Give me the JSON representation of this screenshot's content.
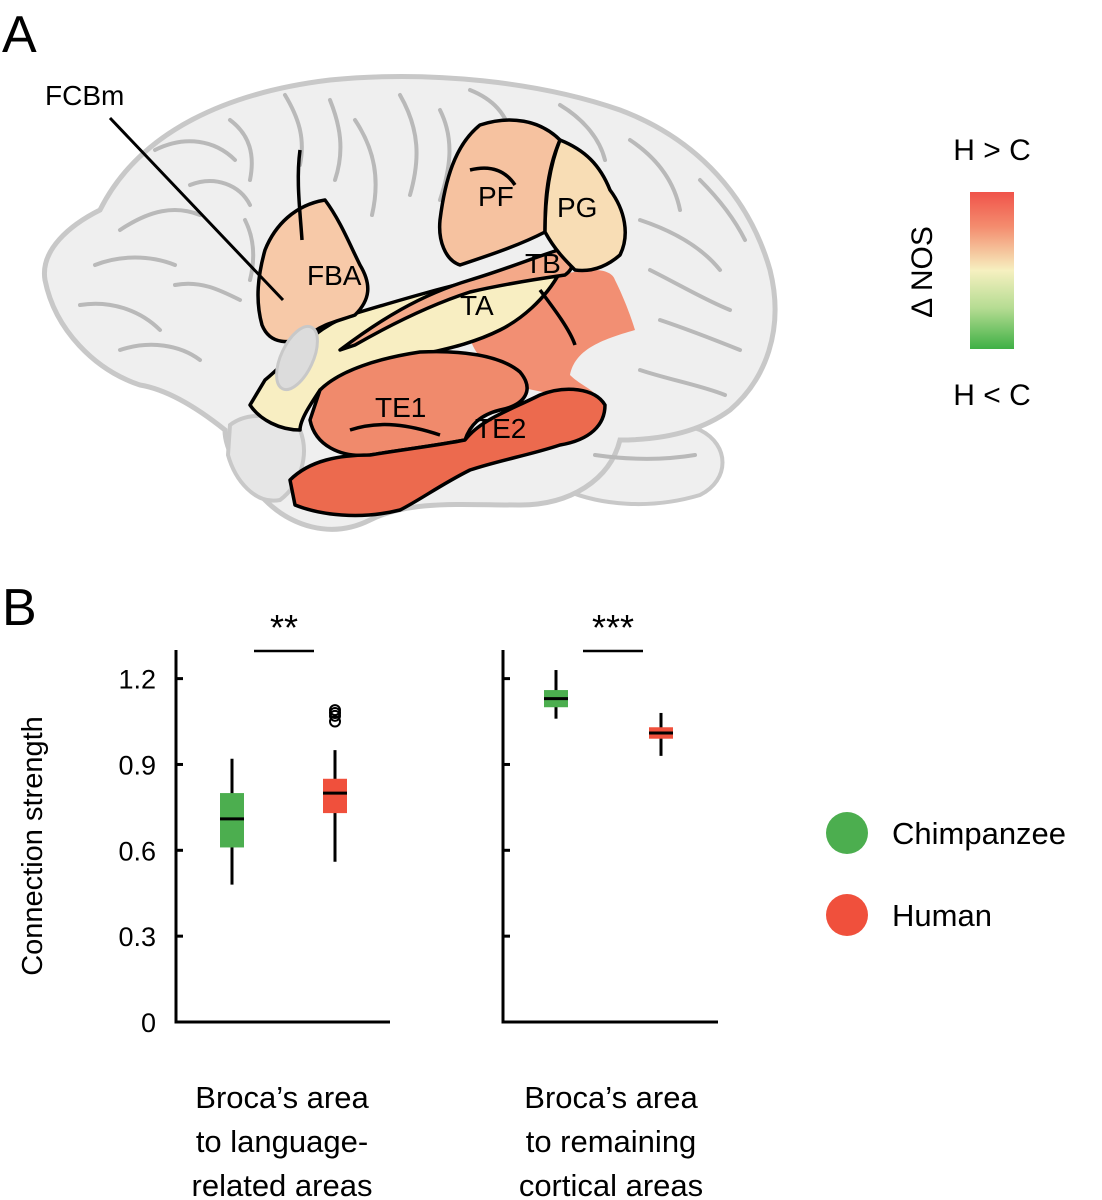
{
  "panel_a": {
    "letter": "A",
    "regions": {
      "fcbm": "FCBm",
      "fba": "FBA",
      "pf": "PF",
      "pg": "PG",
      "tb": "TB",
      "ta": "TA",
      "te1": "TE1",
      "te2": "TE2"
    },
    "colorbar": {
      "top_label": "H > C",
      "bottom_label": "H < C",
      "title": "Δ NOS",
      "colors": {
        "high": "#f0534a",
        "mid": "#f6f0c0",
        "low": "#3fb045"
      }
    },
    "region_colors": {
      "frontal": "#f7c9a8",
      "parietal": "#f6c2a0",
      "pg": "#f8ddb5",
      "temporal_pale": "#f8eec2",
      "tb_strip": "#f4a989",
      "te1": "#f08a6c",
      "te2": "#ec6a4e",
      "posterior": "#f28f73"
    },
    "brain_colors": {
      "fill": "#efefef",
      "outline": "#c8c8c8"
    }
  },
  "chart_data": {
    "panel_letter": "B",
    "type": "box",
    "ylabel": "Connection strength",
    "ylim": [
      0,
      1.3
    ],
    "yticks": [
      0,
      0.3,
      0.6,
      0.9,
      1.2
    ],
    "ytick_labels": [
      "0",
      "0.3",
      "0.6",
      "0.9",
      "1.2"
    ],
    "panels": [
      {
        "category_lines": [
          "Broca’s area",
          "to language-",
          "related areas"
        ],
        "significance": "**",
        "boxes": [
          {
            "group": "Chimpanzee",
            "whisker_low": 0.48,
            "q1": 0.61,
            "median": 0.71,
            "q3": 0.8,
            "whisker_high": 0.92,
            "outliers": []
          },
          {
            "group": "Human",
            "whisker_low": 0.56,
            "q1": 0.73,
            "median": 0.8,
            "q3": 0.85,
            "whisker_high": 0.95,
            "outliers": [
              1.05,
              1.07,
              1.08,
              1.09
            ]
          }
        ]
      },
      {
        "category_lines": [
          "Broca’s area",
          "to remaining",
          "cortical areas"
        ],
        "significance": "***",
        "boxes": [
          {
            "group": "Chimpanzee",
            "whisker_low": 1.06,
            "q1": 1.1,
            "median": 1.13,
            "q3": 1.16,
            "whisker_high": 1.23,
            "outliers": []
          },
          {
            "group": "Human",
            "whisker_low": 0.93,
            "q1": 0.99,
            "median": 1.01,
            "q3": 1.03,
            "whisker_high": 1.08,
            "outliers": []
          }
        ]
      }
    ],
    "legend": [
      {
        "label": "Chimpanzee",
        "color": "#4cae4f"
      },
      {
        "label": "Human",
        "color": "#f0503c"
      }
    ],
    "legend_position": "right"
  }
}
